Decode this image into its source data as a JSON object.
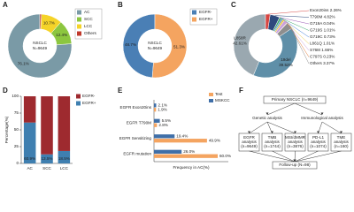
{
  "chart_data": [
    {
      "type": "pie",
      "label": "A",
      "center_text": [
        "NSCLC",
        "N=9649"
      ],
      "categories": [
        "AC",
        "SCC",
        "LCC",
        "Others"
      ],
      "values": [
        76.1,
        12.4,
        10.7,
        0.8
      ],
      "value_labels": [
        "76.1%",
        "12.4%",
        "10.7%",
        null
      ],
      "colors": [
        "#7a9aa6",
        "#8cc63f",
        "#f5d328",
        "#c0392b"
      ],
      "legend": true
    },
    {
      "type": "pie",
      "label": "B",
      "center_text": [
        "NSCLC",
        "N=9649"
      ],
      "categories": [
        "EGFR-",
        "EGFR+"
      ],
      "values": [
        48.7,
        51.3
      ],
      "value_labels": [
        "48.7%",
        "51.3%"
      ],
      "colors": [
        "#4a7fb5",
        "#f4a460"
      ],
      "legend": true
    },
    {
      "type": "pie",
      "label": "C",
      "center_text": [],
      "categories": [
        "L858R",
        "19del",
        "Others",
        "C797S",
        "S768I",
        "L861Q",
        "G719C",
        "G719S",
        "G719A",
        "T790M",
        "Exon20ins"
      ],
      "values": [
        42.61,
        39.52,
        3.37,
        0.23,
        1.66,
        1.01,
        0.73,
        1.01,
        0.04,
        4.82,
        2.26
      ],
      "value_labels": [
        "42.61%",
        "39.52%",
        "3.37%",
        "0.23%",
        "1.66%",
        "1.01%",
        "0.73%",
        "1.01%",
        "0.04%",
        "4.82%",
        "2.26%"
      ],
      "colors": [
        "#9aa8b0",
        "#5f8fa8",
        "#8e8e8e",
        "#e07b39",
        "#c9a0dc",
        "#e8c547",
        "#3b7dd8",
        "#3aa76d",
        "#9b59b6",
        "#2e4a7d",
        "#d64541"
      ],
      "legend": false
    },
    {
      "type": "stacked_bar",
      "label": "D",
      "ylabel": "Percentage(%)",
      "categories": [
        "AC",
        "SCC",
        "LCC"
      ],
      "series": [
        {
          "name": "EGFR-",
          "color": "#9e2a2f",
          "values": [
            39.1,
            86.5,
            81.5
          ]
        },
        {
          "name": "EGFR+",
          "color": "#3f7fb0",
          "values": [
            60.9,
            13.5,
            18.5
          ],
          "value_labels": [
            "60.9%",
            "13.5%",
            "18.5%"
          ]
        }
      ],
      "ylim": [
        0,
        100
      ],
      "yticks": [
        0,
        25,
        50,
        75,
        100
      ]
    },
    {
      "type": "barh",
      "label": "E",
      "xlabel": "Frequency in AC(%)",
      "categories": [
        "EGFR Exon20ins",
        "EGFR T790M",
        "EGFR Sensitizing",
        "EGFR mutation"
      ],
      "series": [
        {
          "name": "Test",
          "color": "#f4a460",
          "values": [
            1.9,
            2.8,
            49.9,
            60.0
          ],
          "value_labels": [
            "1.9%",
            "2.8%",
            "49.9%",
            "60.0%"
          ]
        },
        {
          "name": "MSKCC",
          "color": "#3f6fa8",
          "values": [
            2.1,
            5.5,
            19.4,
            26.0
          ],
          "value_labels": [
            "2.1%",
            "5.5%",
            "19.4%",
            "26.0%"
          ]
        }
      ],
      "xlim": [
        0,
        70
      ]
    }
  ],
  "diagram": {
    "label": "F",
    "root": "Primary NSCLC (n=9649)",
    "branches": [
      "Genetic analysis",
      "Immunological analysis"
    ],
    "analyses": [
      [
        "EGFR",
        "analysis",
        "(n=9649)"
      ],
      [
        "TMB",
        "analysis",
        "(n=1744)"
      ],
      [
        "MSI/dMMR",
        "analysis",
        "(n=3876)"
      ],
      [
        "PD-L1",
        "analysis",
        "(n=1074)"
      ],
      [
        "TME",
        "analysis",
        "(n=160)"
      ]
    ],
    "followup": "Follow-up (N=98)"
  }
}
